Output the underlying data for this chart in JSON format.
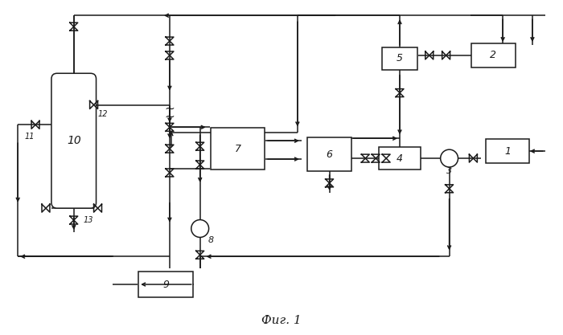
{
  "title": "Фиг. 1",
  "bg_color": "#ffffff",
  "line_color": "#1a1a1a",
  "figsize": [
    7.0,
    4.17
  ],
  "dpi": 100
}
